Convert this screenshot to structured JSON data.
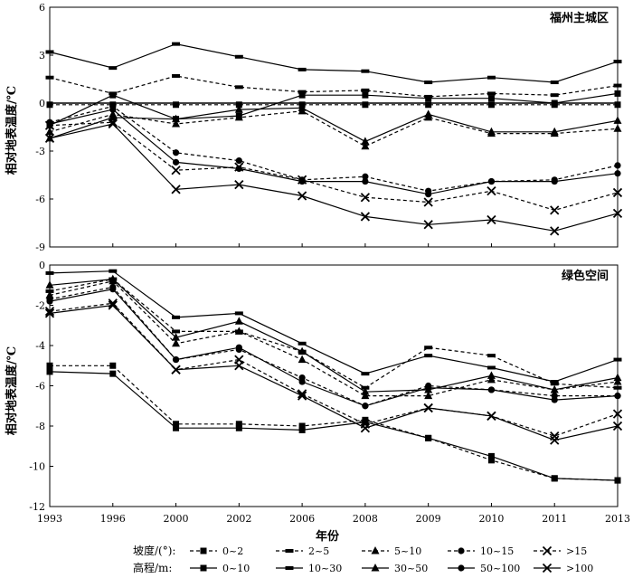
{
  "chart_data": {
    "type": "line",
    "x": [
      "1993",
      "1996",
      "2000",
      "2002",
      "2006",
      "2008",
      "2009",
      "2010",
      "2011",
      "2013"
    ],
    "xlabel": "年份",
    "ylabel": "相对地表温度/℃",
    "grid": false,
    "legend": {
      "slope_title": "坡度/(°):",
      "slope_items": [
        {
          "label": "0~2",
          "marker": "square"
        },
        {
          "label": "2~5",
          "marker": "dash"
        },
        {
          "label": "5~10",
          "marker": "triangle"
        },
        {
          "label": "10~15",
          "marker": "circle"
        },
        {
          "label": ">15",
          "marker": "cross"
        }
      ],
      "elev_title": "高程/m:",
      "elev_items": [
        {
          "label": "0~10",
          "marker": "square"
        },
        {
          "label": "10~30",
          "marker": "dash"
        },
        {
          "label": "30~50",
          "marker": "triangle"
        },
        {
          "label": "50~100",
          "marker": "circle"
        },
        {
          "label": ">100",
          "marker": "cross"
        }
      ]
    },
    "panels": [
      {
        "title": "福州主城区",
        "ylim": [
          -9,
          6
        ],
        "yticks": [
          "6",
          "3",
          "0",
          "-3",
          "-6",
          "-9"
        ],
        "ytick_values": [
          6,
          3,
          0,
          -3,
          -6,
          -9
        ],
        "series": [
          {
            "group": "slope",
            "marker": "square",
            "values": [
              -0.1,
              -0.1,
              -0.1,
              -0.1,
              -0.1,
              -0.1,
              -0.1,
              -0.1,
              -0.1,
              -0.1
            ]
          },
          {
            "group": "slope",
            "marker": "dash",
            "values": [
              1.6,
              0.6,
              1.7,
              1.0,
              0.7,
              0.8,
              0.4,
              0.6,
              0.5,
              1.1
            ]
          },
          {
            "group": "slope",
            "marker": "triangle",
            "values": [
              -1.8,
              -0.7,
              -1.3,
              -0.9,
              -0.5,
              -2.7,
              -0.9,
              -1.9,
              -1.9,
              -1.6
            ]
          },
          {
            "group": "slope",
            "marker": "circle",
            "values": [
              -1.2,
              -0.2,
              -3.1,
              -3.6,
              -4.8,
              -4.6,
              -5.5,
              -4.9,
              -4.8,
              -3.9
            ]
          },
          {
            "group": "slope",
            "marker": "cross",
            "values": [
              -1.4,
              -1.2,
              -4.2,
              -4.0,
              -4.8,
              -5.9,
              -6.2,
              -5.5,
              -6.7,
              -5.6
            ]
          },
          {
            "group": "elev",
            "marker": "square",
            "values": [
              -1.4,
              0.5,
              -1.0,
              -0.8,
              0.5,
              0.5,
              0.3,
              0.3,
              0.0,
              0.6
            ]
          },
          {
            "group": "elev",
            "marker": "dash",
            "values": [
              3.2,
              2.2,
              3.7,
              2.9,
              2.1,
              2.0,
              1.3,
              1.6,
              1.3,
              2.6
            ]
          },
          {
            "group": "elev",
            "marker": "triangle",
            "values": [
              -2.2,
              -0.9,
              -1.0,
              -0.4,
              -0.3,
              -2.4,
              -0.7,
              -1.8,
              -1.8,
              -1.1
            ]
          },
          {
            "group": "elev",
            "marker": "circle",
            "values": [
              -1.3,
              -0.4,
              -3.7,
              -4.1,
              -4.9,
              -4.9,
              -5.7,
              -4.9,
              -4.9,
              -4.4
            ]
          },
          {
            "group": "elev",
            "marker": "cross",
            "values": [
              -2.2,
              -1.3,
              -5.4,
              -5.1,
              -5.8,
              -7.1,
              -7.6,
              -7.3,
              -8.0,
              -6.9
            ]
          }
        ]
      },
      {
        "title": "绿色空间",
        "ylim": [
          -12,
          0
        ],
        "yticks": [
          "0",
          "-2",
          "-4",
          "-6",
          "-8",
          "-10",
          "-12"
        ],
        "ytick_values": [
          0,
          -2,
          -4,
          -6,
          -8,
          -10,
          -12
        ],
        "series": [
          {
            "group": "slope",
            "marker": "square",
            "values": [
              -5.0,
              -5.0,
              -7.9,
              -7.9,
              -8.0,
              -7.7,
              -8.6,
              -9.7,
              -10.6,
              -10.7
            ]
          },
          {
            "group": "slope",
            "marker": "dash",
            "values": [
              -1.3,
              -0.7,
              -3.3,
              -3.3,
              -4.3,
              -6.1,
              -4.1,
              -4.5,
              -5.9,
              -6.1
            ]
          },
          {
            "group": "slope",
            "marker": "triangle",
            "values": [
              -1.5,
              -0.8,
              -3.9,
              -3.3,
              -4.7,
              -6.5,
              -6.5,
              -5.7,
              -6.2,
              -5.8
            ]
          },
          {
            "group": "slope",
            "marker": "circle",
            "values": [
              -1.7,
              -1.1,
              -4.7,
              -4.2,
              -5.6,
              -7.0,
              -6.0,
              -6.2,
              -6.5,
              -6.5
            ]
          },
          {
            "group": "slope",
            "marker": "cross",
            "values": [
              -2.3,
              -1.9,
              -5.2,
              -4.7,
              -6.4,
              -7.9,
              -7.1,
              -7.5,
              -8.5,
              -7.4
            ]
          },
          {
            "group": "elev",
            "marker": "square",
            "values": [
              -5.3,
              -5.4,
              -8.1,
              -8.1,
              -8.2,
              -7.8,
              -8.6,
              -9.5,
              -10.6,
              -10.7
            ]
          },
          {
            "group": "elev",
            "marker": "dash",
            "values": [
              -0.4,
              -0.3,
              -2.6,
              -2.4,
              -3.9,
              -5.4,
              -4.5,
              -5.1,
              -5.8,
              -4.7
            ]
          },
          {
            "group": "elev",
            "marker": "triangle",
            "values": [
              -1.0,
              -0.7,
              -3.6,
              -2.8,
              -4.3,
              -6.3,
              -6.2,
              -5.5,
              -6.2,
              -5.6
            ]
          },
          {
            "group": "elev",
            "marker": "circle",
            "values": [
              -1.8,
              -1.2,
              -4.7,
              -4.1,
              -5.8,
              -7.0,
              -6.1,
              -6.2,
              -6.7,
              -6.5
            ]
          },
          {
            "group": "elev",
            "marker": "cross",
            "values": [
              -2.4,
              -2.0,
              -5.2,
              -5.0,
              -6.5,
              -8.1,
              -7.1,
              -7.5,
              -8.7,
              -8.0
            ]
          }
        ]
      }
    ]
  }
}
